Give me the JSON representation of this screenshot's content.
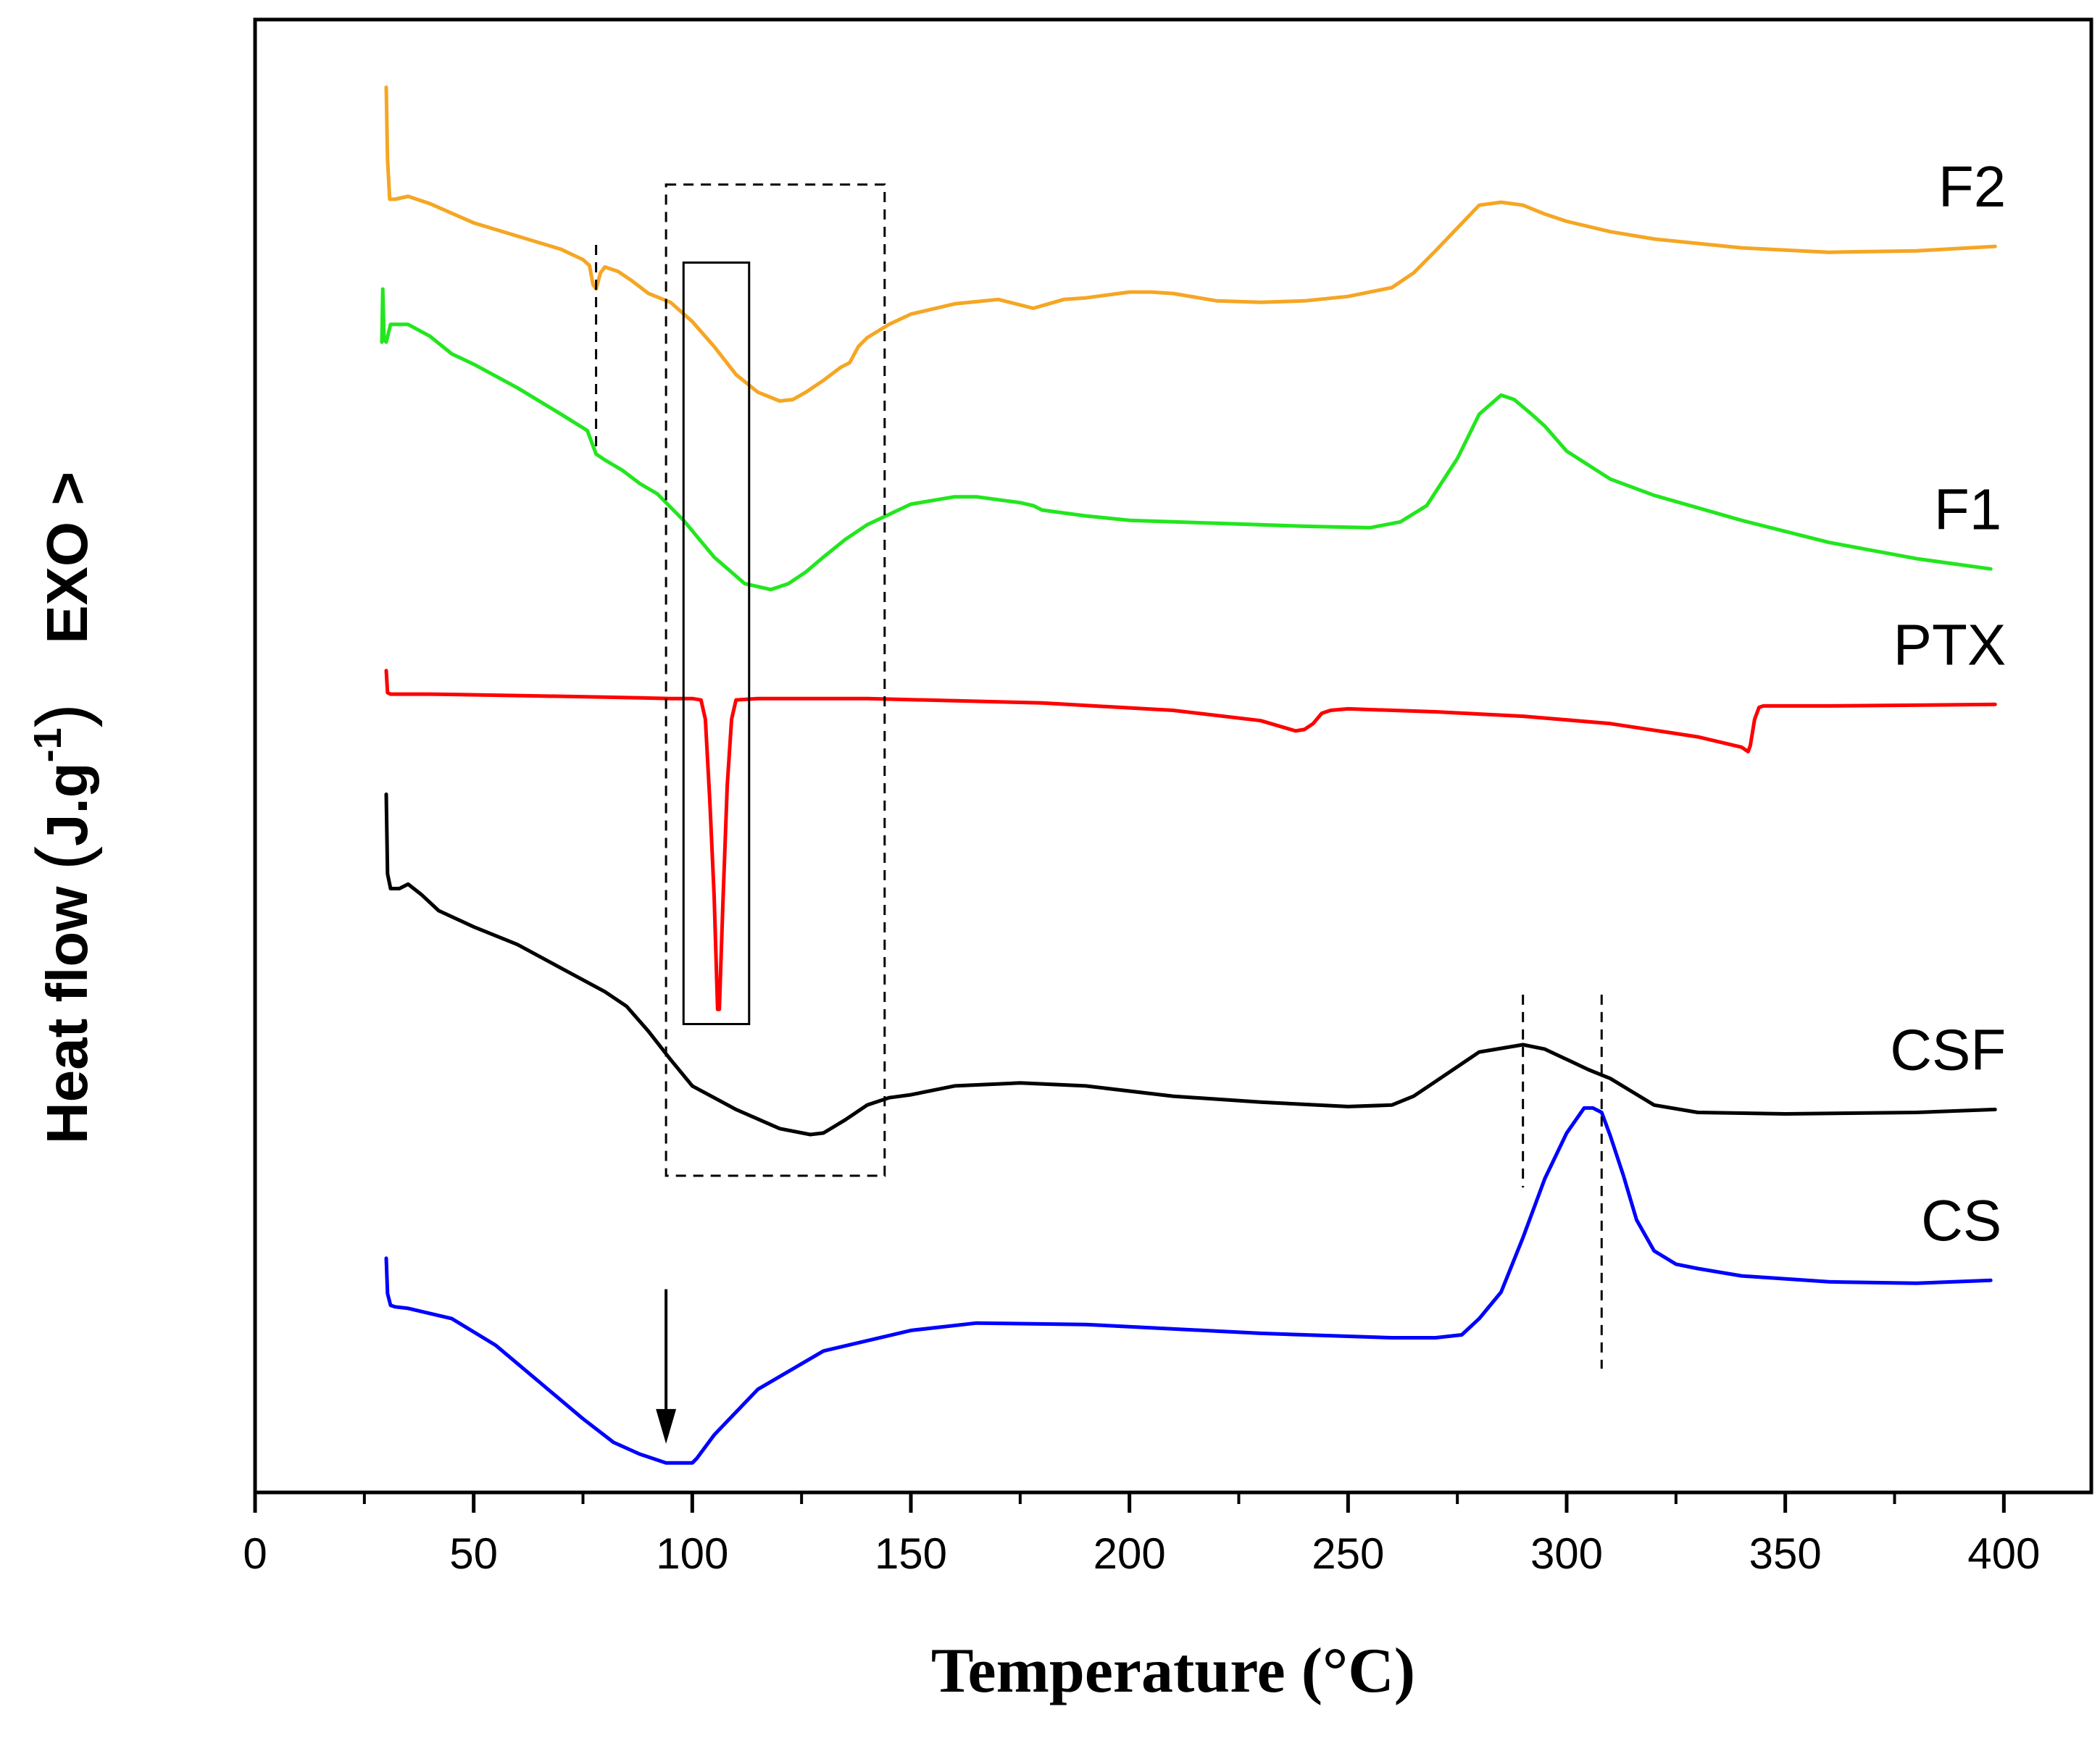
{
  "chart_data": {
    "type": "line",
    "title": "",
    "xlabel": "Temperature (°C)",
    "ylabel_main": "Heat flow",
    "ylabel_unit": "J.g",
    "ylabel_exponent": "-1",
    "ylabel_direction": "EXO >",
    "xlim": [
      0,
      420
    ],
    "xticks": [
      0,
      50,
      100,
      150,
      200,
      250,
      300,
      350,
      400
    ],
    "ylim": [
      0,
      100
    ],
    "yticks_shown": false,
    "grid": false,
    "series": [
      {
        "name": "F2",
        "color": "#F5A623",
        "x": [
          30,
          30.3,
          30.8,
          32,
          35,
          40,
          50,
          60,
          70,
          75,
          76.5,
          77.3,
          78,
          79,
          80,
          83,
          86,
          90,
          95,
          100,
          105,
          110,
          115,
          120,
          123,
          126,
          130,
          134,
          136,
          138,
          140,
          145,
          150,
          160,
          170,
          178,
          185,
          190,
          200,
          205,
          210,
          220,
          230,
          240,
          250,
          260,
          265,
          270,
          280,
          285,
          290,
          295,
          300,
          310,
          320,
          340,
          360,
          380,
          398
        ],
        "y": [
          95.4,
          90.5,
          87.8,
          87.8,
          88.0,
          87.5,
          86.2,
          85.3,
          84.4,
          83.7,
          83.3,
          82.0,
          81.7,
          82.8,
          83.2,
          82.9,
          82.3,
          81.4,
          80.8,
          79.5,
          77.8,
          75.9,
          74.7,
          74.1,
          74.2,
          74.7,
          75.5,
          76.4,
          76.7,
          77.8,
          78.4,
          79.3,
          80.0,
          80.7,
          81.0,
          80.4,
          81.0,
          81.1,
          81.5,
          81.5,
          81.4,
          80.9,
          80.8,
          80.9,
          81.2,
          81.8,
          82.8,
          84.3,
          87.4,
          87.6,
          87.4,
          86.8,
          86.3,
          85.6,
          85.1,
          84.5,
          84.2,
          84.3,
          84.6
        ]
      },
      {
        "name": "F1",
        "color": "#22E61E",
        "x": [
          29,
          29.2,
          29.5,
          30,
          31,
          35,
          40,
          45,
          50,
          60,
          70,
          76,
          78,
          80,
          84,
          88,
          92,
          98,
          105,
          112,
          118,
          122,
          126,
          130,
          135,
          140,
          150,
          160,
          165,
          170,
          175,
          178,
          180,
          190,
          200,
          220,
          240,
          255,
          262,
          268,
          275,
          280,
          285,
          288,
          292,
          295,
          300,
          310,
          320,
          340,
          360,
          380,
          397
        ],
        "y": [
          78.1,
          81.7,
          78.3,
          78.1,
          79.3,
          79.3,
          78.5,
          77.3,
          76.6,
          75.0,
          73.2,
          72.1,
          70.5,
          70.1,
          69.4,
          68.5,
          67.8,
          66.0,
          63.5,
          61.7,
          61.3,
          61.7,
          62.5,
          63.5,
          64.7,
          65.7,
          67.1,
          67.6,
          67.6,
          67.4,
          67.2,
          67.0,
          66.7,
          66.3,
          66.0,
          65.8,
          65.6,
          65.5,
          65.9,
          67.0,
          70.2,
          73.2,
          74.5,
          74.2,
          73.2,
          72.4,
          70.7,
          68.8,
          67.7,
          66.0,
          64.5,
          63.4,
          62.7
        ]
      },
      {
        "name": "PTX",
        "color": "#FF0000",
        "x": [
          30,
          30.3,
          31,
          40,
          60,
          80,
          95,
          100,
          102,
          103,
          104,
          105,
          105.8,
          106.2,
          107,
          108,
          109,
          110,
          115,
          140,
          180,
          210,
          230,
          238,
          240,
          242,
          244,
          246,
          250,
          270,
          290,
          310,
          330,
          340,
          341.5,
          342,
          343,
          344,
          345,
          360,
          398
        ],
        "y": [
          55.8,
          54.3,
          54.2,
          54.2,
          54.1,
          54.0,
          53.9,
          53.9,
          53.8,
          52.5,
          47.0,
          40.5,
          32.8,
          32.8,
          40.0,
          48.0,
          52.5,
          53.8,
          53.9,
          53.9,
          53.6,
          53.1,
          52.4,
          51.7,
          51.8,
          52.2,
          52.9,
          53.1,
          53.2,
          53.0,
          52.7,
          52.2,
          51.3,
          50.6,
          50.3,
          50.7,
          52.5,
          53.3,
          53.4,
          53.4,
          53.5
        ]
      },
      {
        "name": "CSF",
        "color": "#000000",
        "x": [
          30,
          30.3,
          31,
          33,
          35,
          38,
          42,
          50,
          60,
          70,
          80,
          85,
          90,
          95,
          100,
          110,
          120,
          127,
          130,
          135,
          140,
          145,
          150,
          160,
          175,
          190,
          210,
          230,
          250,
          260,
          265,
          270,
          280,
          290,
          295,
          300,
          305,
          310,
          315,
          320,
          330,
          350,
          380,
          398
        ],
        "y": [
          47.4,
          42.0,
          41.0,
          41.0,
          41.3,
          40.6,
          39.5,
          38.4,
          37.2,
          35.6,
          34.0,
          33.0,
          31.3,
          29.4,
          27.6,
          26.0,
          24.7,
          24.3,
          24.4,
          25.3,
          26.3,
          26.8,
          27.0,
          27.6,
          27.8,
          27.6,
          26.9,
          26.5,
          26.2,
          26.3,
          26.9,
          27.9,
          29.9,
          30.4,
          30.1,
          29.4,
          28.7,
          28.1,
          27.2,
          26.3,
          25.8,
          25.7,
          25.8,
          26.0
        ]
      },
      {
        "name": "CS",
        "color": "#0000FF",
        "x": [
          30,
          30.3,
          31,
          32,
          35,
          45,
          55,
          65,
          75,
          82,
          88,
          94,
          97,
          100,
          101,
          105,
          115,
          130,
          150,
          165,
          190,
          230,
          260,
          270,
          276,
          280,
          285,
          290,
          295,
          300,
          304,
          306,
          308,
          310,
          313,
          316,
          320,
          325,
          330,
          340,
          360,
          380,
          397
        ],
        "y": [
          15.9,
          13.5,
          12.7,
          12.6,
          12.5,
          11.8,
          10.0,
          7.5,
          5.0,
          3.4,
          2.6,
          2.0,
          2.0,
          2.0,
          2.3,
          3.9,
          7.0,
          9.6,
          11.0,
          11.5,
          11.4,
          10.8,
          10.5,
          10.5,
          10.7,
          11.8,
          13.6,
          17.3,
          21.3,
          24.4,
          26.1,
          26.1,
          25.8,
          24.2,
          21.5,
          18.5,
          16.4,
          15.5,
          15.2,
          14.7,
          14.3,
          14.2,
          14.4
        ]
      }
    ],
    "annotations": [
      {
        "type": "dashed-box",
        "x_range": [
          94,
          144
        ],
        "y_range": [
          21.5,
          88.8
        ]
      },
      {
        "type": "solid-box",
        "x_range": [
          98,
          113
        ],
        "y_range": [
          31.8,
          83.5
        ]
      },
      {
        "type": "dashed-vline",
        "x": 78,
        "y_range": [
          70.8,
          84.7
        ]
      },
      {
        "type": "dashed-vline",
        "x": 290,
        "y_range": [
          20.7,
          33.8
        ]
      },
      {
        "type": "dashed-vline",
        "x": 308,
        "y_range": [
          8.4,
          33.8
        ]
      },
      {
        "type": "arrow-down",
        "x": 94,
        "y_from": 13.8,
        "y_to": 3.3
      }
    ]
  }
}
